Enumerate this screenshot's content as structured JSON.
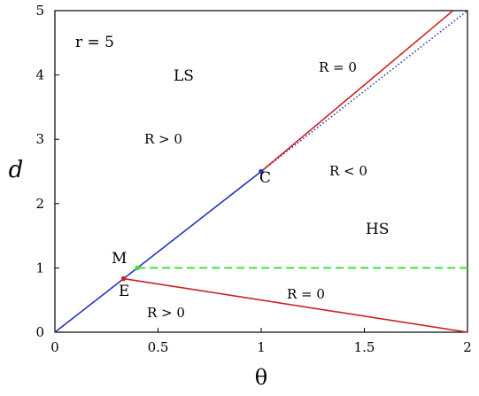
{
  "chart_data": {
    "type": "line",
    "title": "",
    "xlabel": "θ",
    "ylabel": "d",
    "xlim": [
      0,
      2
    ],
    "ylim": [
      0,
      5
    ],
    "xticks": [
      "0",
      "0.5",
      "1",
      "1.5",
      "2"
    ],
    "yticks": [
      "0",
      "1",
      "2",
      "3",
      "4",
      "5"
    ],
    "grid": false,
    "legend": "none",
    "series": [
      {
        "color": "#2233bb",
        "style": "solid",
        "points": [
          [
            0,
            0
          ],
          [
            1,
            2.5
          ]
        ]
      },
      {
        "color": "#2233bb",
        "style": "dotted",
        "points": [
          [
            1,
            2.5
          ],
          [
            2,
            5
          ]
        ]
      },
      {
        "color": "#cc2222",
        "style": "solid",
        "points": [
          [
            1,
            2.5
          ],
          [
            1.93,
            5
          ]
        ]
      },
      {
        "color": "#cc2222",
        "style": "solid",
        "points": [
          [
            0.333,
            0.833
          ],
          [
            2,
            0
          ]
        ]
      },
      {
        "color": "#44dd44",
        "style": "dashed",
        "points": [
          [
            0.4,
            1
          ],
          [
            2,
            1
          ]
        ]
      }
    ],
    "points": [
      {
        "label": "C",
        "x": 1,
        "y": 2.5,
        "color": "#2233bb"
      },
      {
        "label": "E",
        "x": 0.333,
        "y": 0.833,
        "color": "#cc2222"
      },
      {
        "label": "M",
        "x": 0.4,
        "y": 1,
        "color": "#44dd44"
      }
    ],
    "annotations": [
      {
        "key": "r",
        "text": "r = 5"
      },
      {
        "key": "ls",
        "text": "LS"
      },
      {
        "key": "hs",
        "text": "HS"
      },
      {
        "key": "r_zero_upper",
        "text": "R = 0"
      },
      {
        "key": "r_pos_upper",
        "text": "R > 0"
      },
      {
        "key": "r_neg",
        "text": "R < 0"
      },
      {
        "key": "r_zero_lower",
        "text": "R = 0"
      },
      {
        "key": "r_pos_lower",
        "text": "R > 0"
      }
    ]
  }
}
